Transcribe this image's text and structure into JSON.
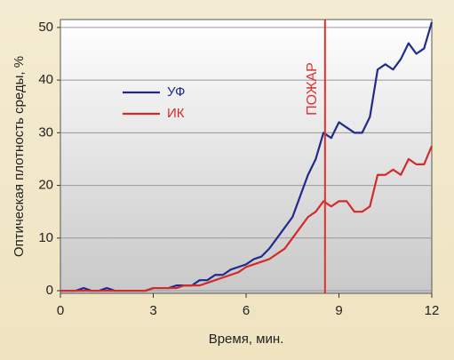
{
  "chart_data": {
    "type": "line",
    "x_label": "Время, мин.",
    "y_label": "Оптическая плотность среды, %",
    "x": [
      0,
      0.25,
      0.5,
      0.75,
      1,
      1.25,
      1.5,
      1.75,
      2,
      2.25,
      2.5,
      2.75,
      3,
      3.25,
      3.5,
      3.75,
      4,
      4.25,
      4.5,
      4.75,
      5,
      5.25,
      5.5,
      5.75,
      6,
      6.25,
      6.5,
      6.75,
      7,
      7.25,
      7.5,
      7.75,
      8,
      8.25,
      8.5,
      8.75,
      9,
      9.25,
      9.5,
      9.75,
      10,
      10.25,
      10.5,
      10.75,
      11,
      11.25,
      11.5,
      11.75,
      12
    ],
    "series": [
      {
        "name": "УФ",
        "color": "#1f2a8c",
        "values": [
          0,
          0,
          0,
          0.5,
          0,
          0,
          0.5,
          0,
          0,
          0,
          0,
          0,
          0.5,
          0.5,
          0.5,
          1,
          1,
          1,
          2,
          2,
          3,
          3,
          4,
          4.5,
          5,
          6,
          6.5,
          8,
          10,
          12,
          14,
          18,
          22,
          25,
          30,
          29,
          32,
          31,
          30,
          30,
          33,
          42,
          43,
          42,
          44,
          47,
          45,
          46,
          51
        ]
      },
      {
        "name": "ИК",
        "color": "#d42a2a",
        "values": [
          0,
          0,
          0,
          0,
          0,
          0,
          0,
          0,
          0,
          0,
          0,
          0,
          0.5,
          0.5,
          0.5,
          0.5,
          1,
          1,
          1,
          1.5,
          2,
          2.5,
          3,
          3.5,
          4.5,
          5,
          5.5,
          6,
          7,
          8,
          10,
          12,
          14,
          15,
          17,
          16,
          17,
          17,
          15,
          15,
          16,
          22,
          22,
          23,
          22,
          25,
          24,
          24,
          27.5
        ]
      }
    ],
    "annotation": {
      "label": "ПОЖАР",
      "x": 8.55,
      "color": "#e03030"
    },
    "xlim": [
      0,
      12
    ],
    "xticks": [
      0,
      3,
      6,
      9,
      12
    ],
    "ylim": [
      -0.5,
      51.5
    ],
    "yticks": [
      0,
      10,
      20,
      30,
      40,
      50
    ],
    "grid": "y"
  }
}
